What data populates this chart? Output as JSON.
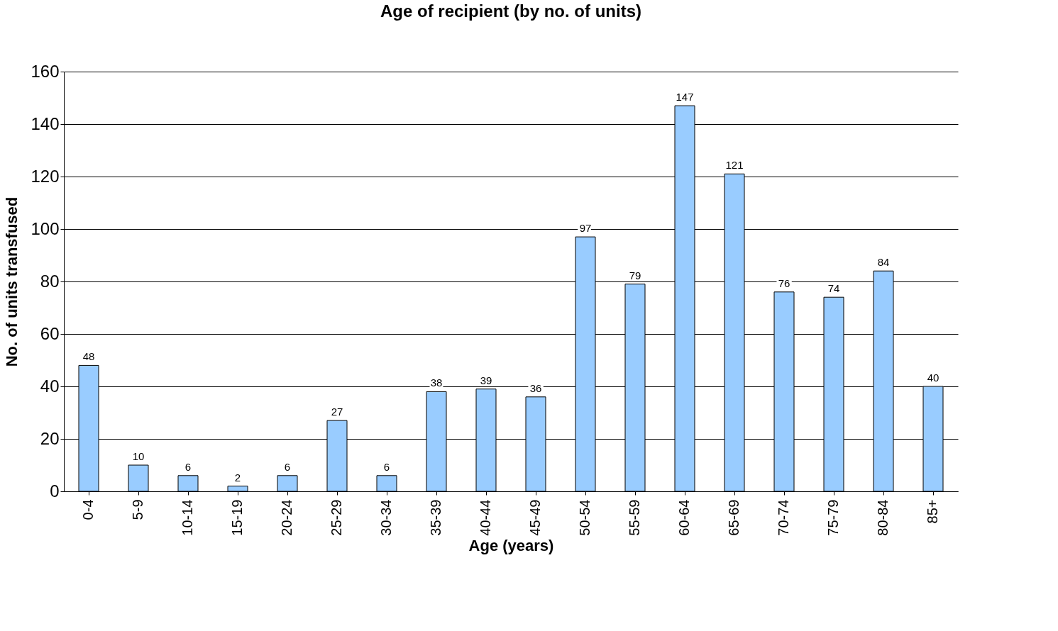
{
  "chart_data": {
    "type": "bar",
    "title": "Age of recipient (by no. of units)",
    "xlabel": "Age (years)",
    "ylabel": "No. of units transfused",
    "categories": [
      "0-4",
      "5-9",
      "10-14",
      "15-19",
      "20-24",
      "25-29",
      "30-34",
      "35-39",
      "40-44",
      "45-49",
      "50-54",
      "55-59",
      "60-64",
      "65-69",
      "70-74",
      "75-79",
      "80-84",
      "85+"
    ],
    "values": [
      48,
      10,
      6,
      2,
      6,
      27,
      6,
      38,
      39,
      36,
      97,
      79,
      147,
      121,
      76,
      74,
      84,
      40
    ],
    "color": "#99ccff",
    "ylim": [
      0,
      160
    ],
    "yticks": [
      0,
      20,
      40,
      60,
      80,
      100,
      120,
      140,
      160
    ],
    "grid": "y",
    "data_labels": true
  }
}
